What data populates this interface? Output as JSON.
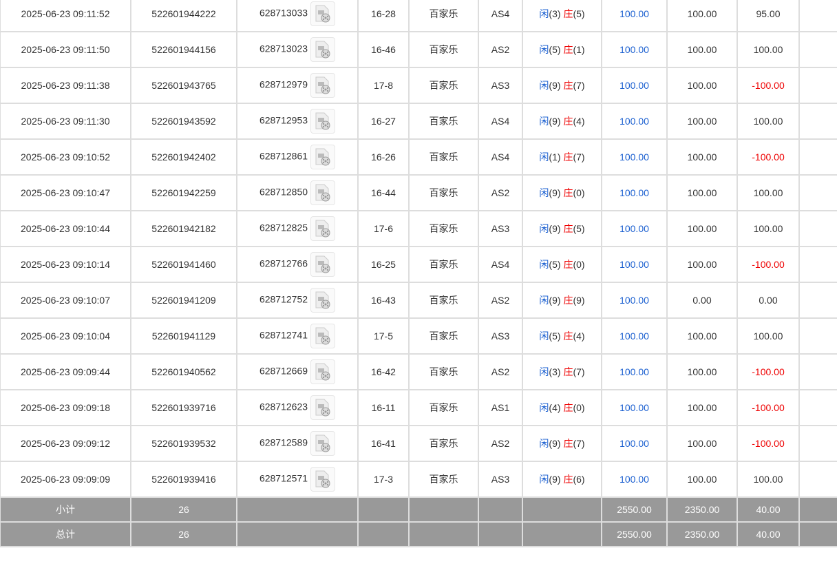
{
  "colors": {
    "player": "#1a5fd0",
    "banker": "#e00000",
    "negative": "#e00000",
    "summary_bg": "#999999"
  },
  "rows": [
    {
      "time": "2025-06-23 09:11:52",
      "bet_id": "522601944222",
      "round_id": "628713033",
      "shoe": "16-28",
      "game": "百家乐",
      "table": "AS4",
      "player": "3",
      "banker": "5",
      "bet": "100.00",
      "valid": "100.00",
      "win": "95.00"
    },
    {
      "time": "2025-06-23 09:11:50",
      "bet_id": "522601944156",
      "round_id": "628713023",
      "shoe": "16-46",
      "game": "百家乐",
      "table": "AS2",
      "player": "5",
      "banker": "1",
      "bet": "100.00",
      "valid": "100.00",
      "win": "100.00"
    },
    {
      "time": "2025-06-23 09:11:38",
      "bet_id": "522601943765",
      "round_id": "628712979",
      "shoe": "17-8",
      "game": "百家乐",
      "table": "AS3",
      "player": "9",
      "banker": "7",
      "bet": "100.00",
      "valid": "100.00",
      "win": "-100.00"
    },
    {
      "time": "2025-06-23 09:11:30",
      "bet_id": "522601943592",
      "round_id": "628712953",
      "shoe": "16-27",
      "game": "百家乐",
      "table": "AS4",
      "player": "9",
      "banker": "4",
      "bet": "100.00",
      "valid": "100.00",
      "win": "100.00"
    },
    {
      "time": "2025-06-23 09:10:52",
      "bet_id": "522601942402",
      "round_id": "628712861",
      "shoe": "16-26",
      "game": "百家乐",
      "table": "AS4",
      "player": "1",
      "banker": "7",
      "bet": "100.00",
      "valid": "100.00",
      "win": "-100.00"
    },
    {
      "time": "2025-06-23 09:10:47",
      "bet_id": "522601942259",
      "round_id": "628712850",
      "shoe": "16-44",
      "game": "百家乐",
      "table": "AS2",
      "player": "9",
      "banker": "0",
      "bet": "100.00",
      "valid": "100.00",
      "win": "100.00"
    },
    {
      "time": "2025-06-23 09:10:44",
      "bet_id": "522601942182",
      "round_id": "628712825",
      "shoe": "17-6",
      "game": "百家乐",
      "table": "AS3",
      "player": "9",
      "banker": "5",
      "bet": "100.00",
      "valid": "100.00",
      "win": "100.00"
    },
    {
      "time": "2025-06-23 09:10:14",
      "bet_id": "522601941460",
      "round_id": "628712766",
      "shoe": "16-25",
      "game": "百家乐",
      "table": "AS4",
      "player": "5",
      "banker": "0",
      "bet": "100.00",
      "valid": "100.00",
      "win": "-100.00"
    },
    {
      "time": "2025-06-23 09:10:07",
      "bet_id": "522601941209",
      "round_id": "628712752",
      "shoe": "16-43",
      "game": "百家乐",
      "table": "AS2",
      "player": "9",
      "banker": "9",
      "bet": "100.00",
      "valid": "0.00",
      "win": "0.00"
    },
    {
      "time": "2025-06-23 09:10:04",
      "bet_id": "522601941129",
      "round_id": "628712741",
      "shoe": "17-5",
      "game": "百家乐",
      "table": "AS3",
      "player": "5",
      "banker": "4",
      "bet": "100.00",
      "valid": "100.00",
      "win": "100.00"
    },
    {
      "time": "2025-06-23 09:09:44",
      "bet_id": "522601940562",
      "round_id": "628712669",
      "shoe": "16-42",
      "game": "百家乐",
      "table": "AS2",
      "player": "3",
      "banker": "7",
      "bet": "100.00",
      "valid": "100.00",
      "win": "-100.00"
    },
    {
      "time": "2025-06-23 09:09:18",
      "bet_id": "522601939716",
      "round_id": "628712623",
      "shoe": "16-11",
      "game": "百家乐",
      "table": "AS1",
      "player": "4",
      "banker": "0",
      "bet": "100.00",
      "valid": "100.00",
      "win": "-100.00"
    },
    {
      "time": "2025-06-23 09:09:12",
      "bet_id": "522601939532",
      "round_id": "628712589",
      "shoe": "16-41",
      "game": "百家乐",
      "table": "AS2",
      "player": "9",
      "banker": "7",
      "bet": "100.00",
      "valid": "100.00",
      "win": "-100.00"
    },
    {
      "time": "2025-06-23 09:09:09",
      "bet_id": "522601939416",
      "round_id": "628712571",
      "shoe": "17-3",
      "game": "百家乐",
      "table": "AS3",
      "player": "9",
      "banker": "6",
      "bet": "100.00",
      "valid": "100.00",
      "win": "100.00"
    }
  ],
  "labels": {
    "player": "闲",
    "banker": "庄"
  },
  "subtotal": {
    "label": "小计",
    "count": "26",
    "bet": "2550.00",
    "valid": "2350.00",
    "win": "40.00"
  },
  "total": {
    "label": "总计",
    "count": "26",
    "bet": "2550.00",
    "valid": "2350.00",
    "win": "40.00"
  }
}
